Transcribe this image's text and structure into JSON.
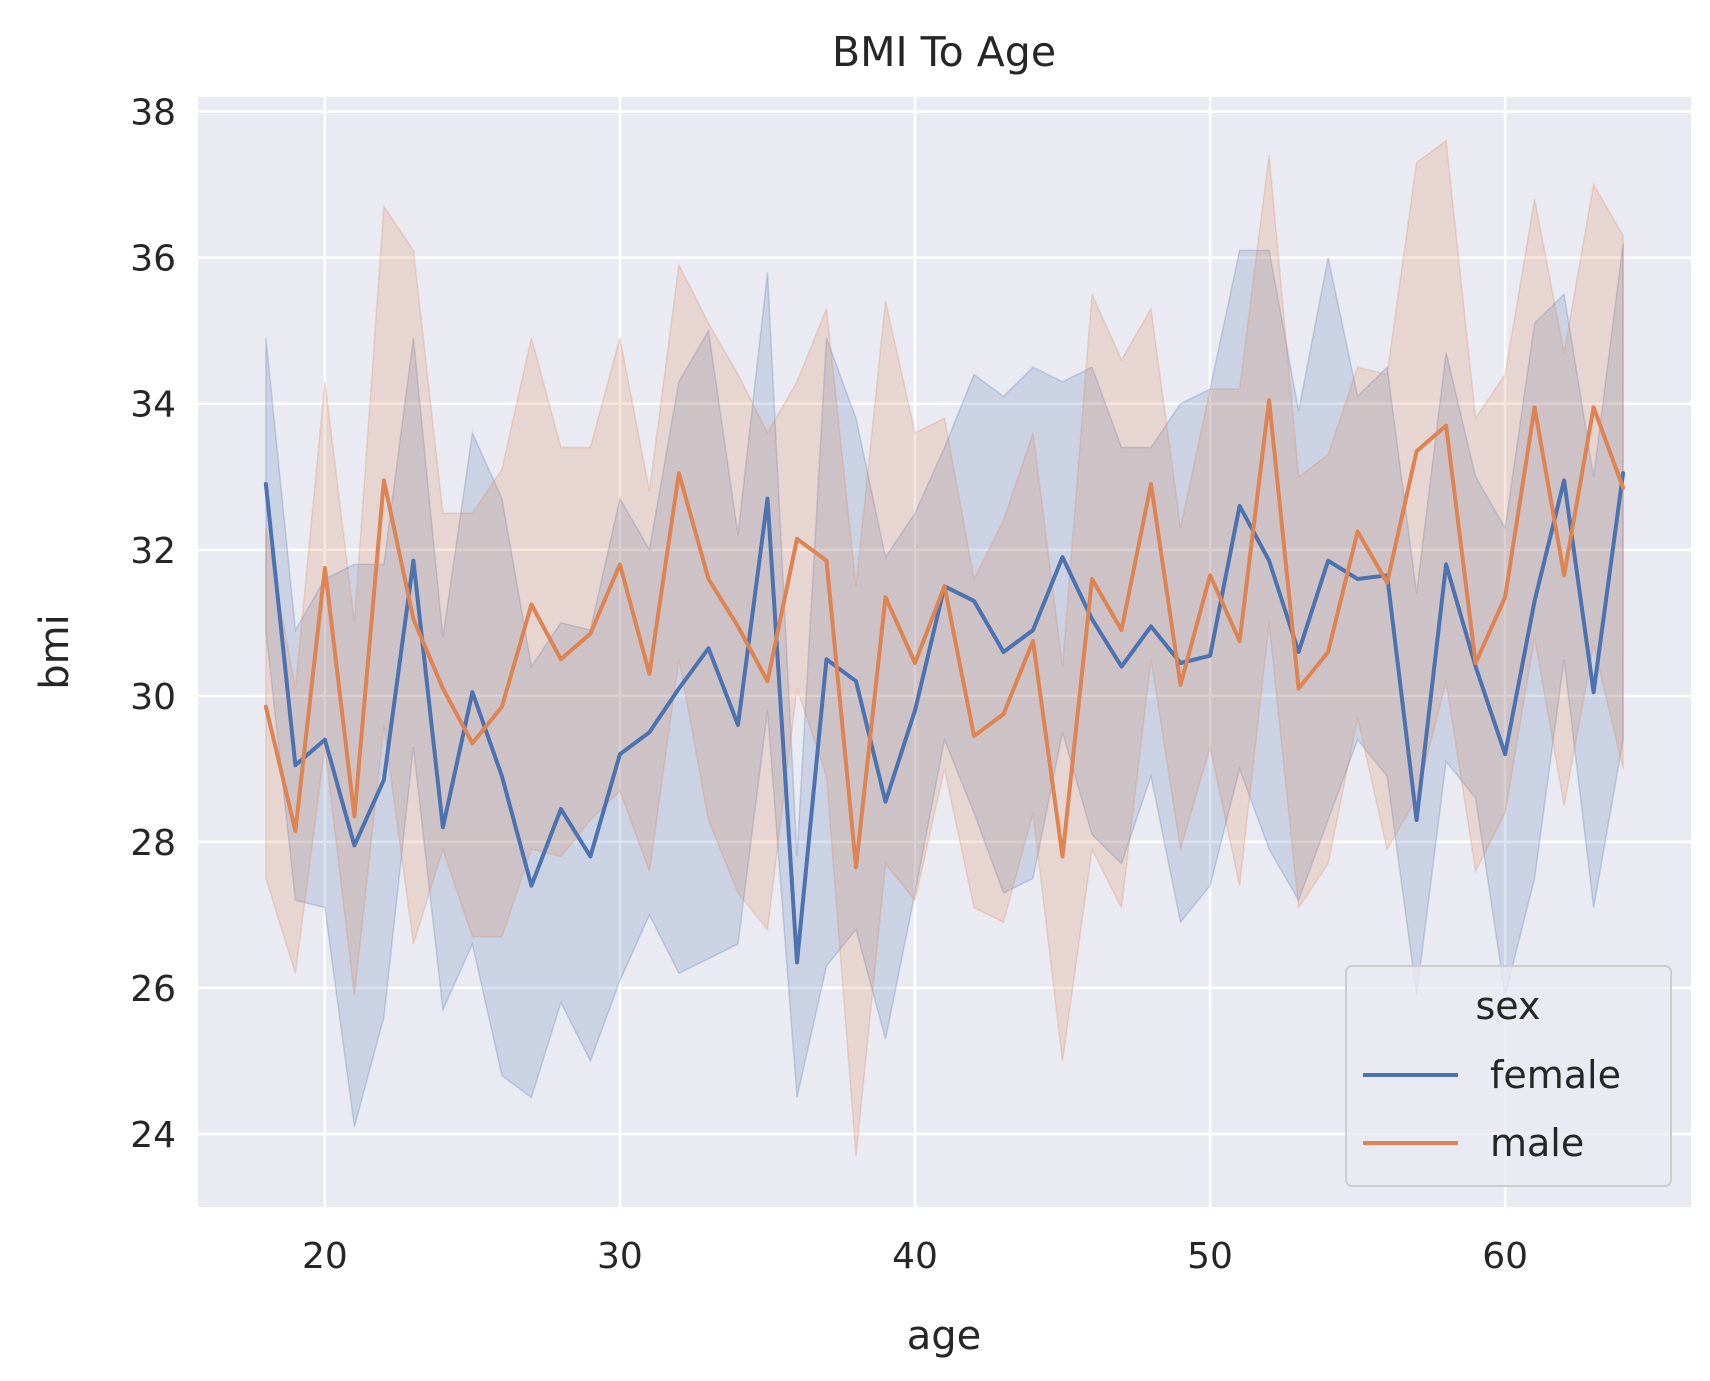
{
  "chart_data": {
    "type": "line",
    "title": "BMI To Age",
    "xlabel": "age",
    "ylabel": "bmi",
    "xlim": [
      15.7,
      66.3
    ],
    "ylim": [
      23.0,
      38.2
    ],
    "xticks": [
      "20",
      "30",
      "40",
      "50",
      "60"
    ],
    "yticks": [
      "24",
      "26",
      "28",
      "30",
      "32",
      "34",
      "36",
      "38"
    ],
    "grid": true,
    "legend": {
      "title": "sex",
      "placement": "lower-right"
    },
    "x": [
      18,
      19,
      20,
      21,
      22,
      23,
      24,
      25,
      26,
      27,
      28,
      29,
      30,
      31,
      32,
      33,
      34,
      35,
      36,
      37,
      38,
      39,
      40,
      41,
      42,
      43,
      44,
      45,
      46,
      47,
      48,
      49,
      50,
      51,
      52,
      53,
      54,
      55,
      56,
      57,
      58,
      59,
      60,
      61,
      62,
      63,
      64
    ],
    "series": [
      {
        "name": "female",
        "color": "#4c72b0",
        "values": [
          32.9,
          29.05,
          29.4,
          27.95,
          28.85,
          31.85,
          28.2,
          30.05,
          28.9,
          27.4,
          28.45,
          27.8,
          29.2,
          29.5,
          30.1,
          30.65,
          29.6,
          32.7,
          26.35,
          30.5,
          30.2,
          28.55,
          29.8,
          31.5,
          31.3,
          30.6,
          30.9,
          31.9,
          31.05,
          30.4,
          30.95,
          30.45,
          30.55,
          32.6,
          31.85,
          30.6,
          31.85,
          31.6,
          31.65,
          28.3,
          31.8,
          30.4,
          29.2,
          31.3,
          32.95,
          30.05,
          33.05
        ],
        "upper": [
          34.9,
          30.9,
          31.6,
          31.8,
          31.8,
          34.9,
          30.8,
          33.6,
          32.7,
          30.4,
          31.0,
          30.9,
          32.7,
          32.0,
          34.3,
          35.0,
          32.2,
          35.8,
          27.8,
          34.9,
          33.8,
          31.9,
          32.5,
          33.4,
          34.4,
          34.1,
          34.5,
          34.3,
          34.5,
          33.4,
          33.4,
          34.0,
          34.2,
          36.1,
          36.1,
          33.9,
          36.0,
          34.1,
          34.5,
          31.4,
          34.7,
          33.0,
          32.3,
          35.1,
          35.5,
          33.0,
          36.2
        ],
        "lower": [
          30.9,
          27.2,
          27.1,
          24.1,
          25.6,
          29.3,
          25.7,
          26.6,
          24.8,
          24.5,
          25.8,
          25.0,
          26.1,
          27.0,
          26.2,
          26.4,
          26.6,
          29.8,
          24.5,
          26.3,
          26.8,
          25.3,
          27.3,
          29.4,
          28.4,
          27.3,
          27.5,
          29.5,
          28.1,
          27.7,
          28.9,
          26.9,
          27.4,
          29.0,
          27.9,
          27.2,
          28.3,
          29.4,
          28.9,
          25.9,
          29.1,
          28.6,
          25.9,
          27.5,
          30.5,
          27.1,
          29.4
        ]
      },
      {
        "name": "male",
        "color": "#dd8452",
        "values": [
          29.85,
          28.15,
          31.75,
          28.35,
          32.95,
          31.05,
          30.1,
          29.35,
          29.85,
          31.25,
          30.5,
          30.85,
          31.8,
          30.3,
          33.05,
          31.6,
          30.95,
          30.2,
          32.15,
          31.85,
          27.65,
          31.35,
          30.45,
          31.5,
          29.45,
          29.75,
          30.75,
          27.8,
          31.6,
          30.9,
          32.9,
          30.15,
          31.65,
          30.75,
          34.05,
          30.1,
          30.6,
          32.25,
          31.55,
          33.35,
          33.7,
          30.45,
          31.35,
          33.95,
          31.65,
          33.95,
          32.85
        ],
        "upper": [
          32.3,
          30.1,
          34.3,
          31.0,
          36.7,
          36.1,
          32.5,
          32.5,
          33.1,
          34.9,
          33.4,
          33.4,
          34.9,
          32.8,
          35.9,
          35.1,
          34.4,
          33.6,
          34.3,
          35.3,
          31.5,
          35.4,
          33.6,
          33.8,
          31.6,
          32.4,
          33.6,
          30.4,
          35.5,
          34.6,
          35.3,
          32.3,
          34.2,
          34.2,
          37.4,
          33.0,
          33.3,
          34.5,
          34.4,
          37.3,
          37.6,
          33.8,
          34.4,
          36.8,
          34.7,
          37.0,
          36.3
        ],
        "lower": [
          27.5,
          26.2,
          29.3,
          25.9,
          29.6,
          26.6,
          27.9,
          26.7,
          26.7,
          27.9,
          27.8,
          28.3,
          28.7,
          27.6,
          30.5,
          28.3,
          27.3,
          26.8,
          30.1,
          28.9,
          23.7,
          27.7,
          27.2,
          29.0,
          27.1,
          26.9,
          28.4,
          25.0,
          27.9,
          27.1,
          30.5,
          27.9,
          29.3,
          27.4,
          31.0,
          27.1,
          27.7,
          29.7,
          27.9,
          28.6,
          30.2,
          27.6,
          28.4,
          30.8,
          28.5,
          30.7,
          29.0
        ]
      }
    ]
  }
}
